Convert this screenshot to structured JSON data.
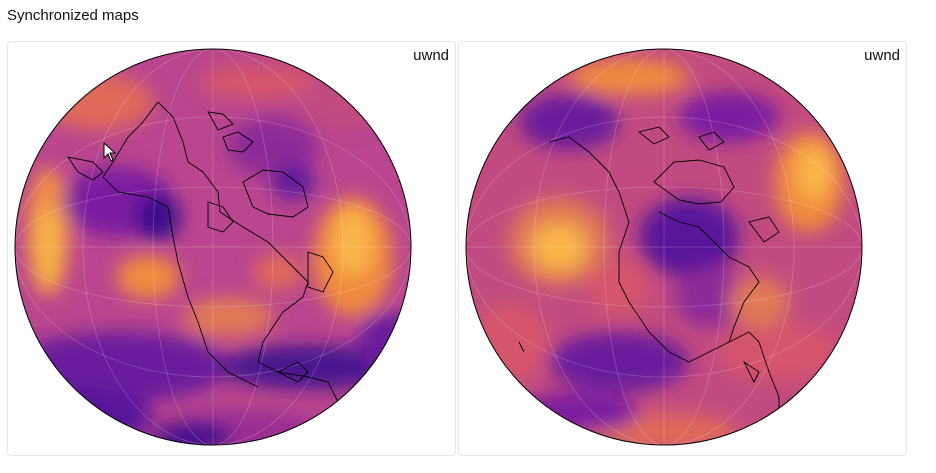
{
  "page": {
    "title": "Synchronized maps"
  },
  "maps": [
    {
      "id": "left",
      "label": "uwnd",
      "colormap": "plasma"
    },
    {
      "id": "right",
      "label": "uwnd",
      "colormap": "plasma"
    }
  ],
  "colors": {
    "ocean_base": "#b9468e",
    "coastline": "#000000",
    "border": "#e6e6e6",
    "deep_purple": "#3b0f8c",
    "violet": "#6a1a9c",
    "magenta": "#a3338f",
    "pink": "#d4556c",
    "orange": "#f08a41",
    "yellow_orange": "#f9b54a"
  },
  "cursor": {
    "icon": "arrow-pointer"
  }
}
